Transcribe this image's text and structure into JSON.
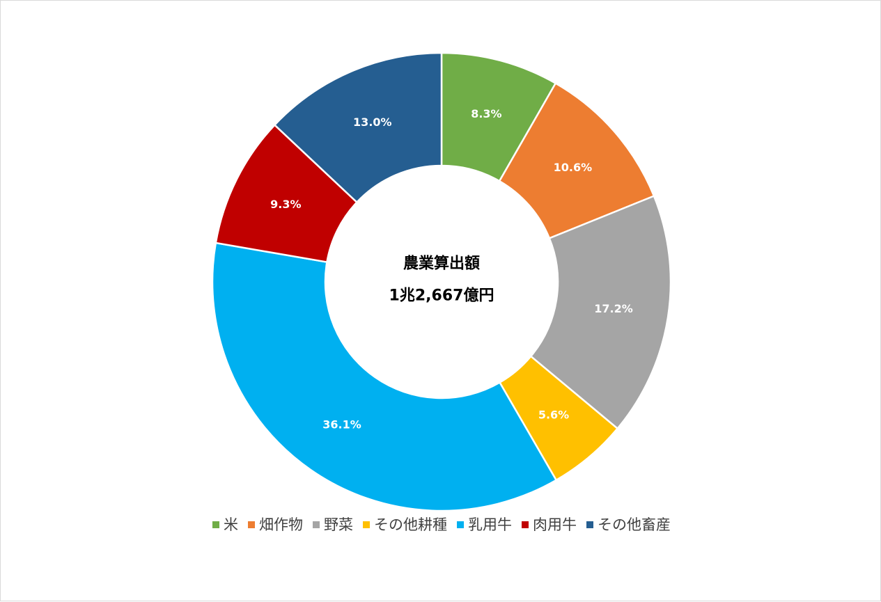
{
  "chart_data": {
    "type": "pie",
    "donut": true,
    "center_label": [
      "農業算出額",
      "1兆2,667億円"
    ],
    "unit": "%",
    "slices": [
      {
        "name": "米",
        "value": 8.3,
        "label": "8.3%",
        "color": "#70ad47"
      },
      {
        "name": "畑作物",
        "value": 10.6,
        "label": "10.6%",
        "color": "#ed7d31"
      },
      {
        "name": "野菜",
        "value": 17.2,
        "label": "17.2%",
        "color": "#a5a5a5"
      },
      {
        "name": "その他耕種",
        "value": 5.6,
        "label": "5.6%",
        "color": "#ffc000"
      },
      {
        "name": "乳用牛",
        "value": 36.1,
        "label": "36.1%",
        "color": "#00b0f0"
      },
      {
        "name": "肉用牛",
        "value": 9.3,
        "label": "9.3%",
        "color": "#c00000"
      },
      {
        "name": "その他畜産",
        "value": 13.0,
        "label": "13.0%",
        "color": "#255e91"
      }
    ],
    "legend_position": "bottom"
  }
}
